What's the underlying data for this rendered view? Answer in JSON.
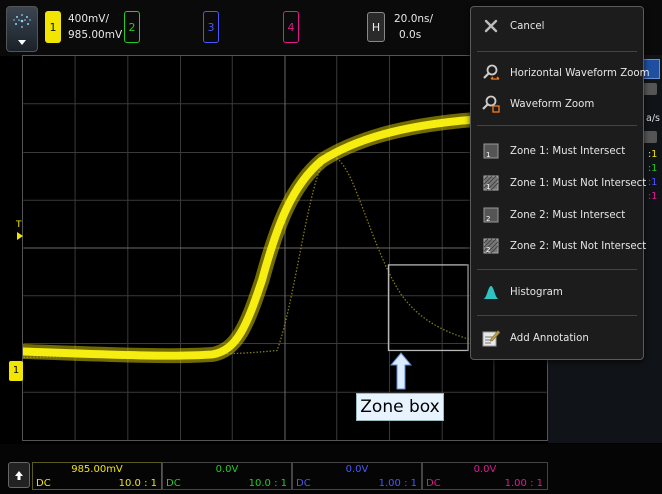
{
  "channels": {
    "ch1": {
      "num": "1",
      "scale": "400mV/",
      "offset": "985.00mV",
      "color": "#f2e600"
    },
    "ch2": {
      "num": "2",
      "color": "#22cc22"
    },
    "ch3": {
      "num": "3",
      "color": "#4a56ff"
    },
    "ch4": {
      "num": "4",
      "color": "#e0198f"
    }
  },
  "horizontal": {
    "label": "H",
    "scale": "20.0ns/",
    "delay": "0.0s"
  },
  "menu": {
    "items": [
      {
        "label": "Cancel",
        "icon": "cancel-icon"
      },
      {
        "label": "Horizontal Waveform Zoom",
        "icon": "horizontal-zoom-icon"
      },
      {
        "label": "Waveform Zoom",
        "icon": "waveform-zoom-icon"
      },
      {
        "label": "Zone 1: Must Intersect",
        "icon": "zone1-intersect-icon"
      },
      {
        "label": "Zone 1: Must Not Intersect",
        "icon": "zone1-not-intersect-icon"
      },
      {
        "label": "Zone 2: Must Intersect",
        "icon": "zone2-intersect-icon"
      },
      {
        "label": "Zone 2: Must Not Intersect",
        "icon": "zone2-not-intersect-icon"
      },
      {
        "label": "Histogram",
        "icon": "histogram-icon"
      },
      {
        "label": "Add Annotation",
        "icon": "annotation-icon"
      }
    ]
  },
  "right_panel": {
    "snip_rate": "a/s",
    "ratios": [
      ":1",
      ":1",
      ":1",
      ":1"
    ]
  },
  "bottom": [
    {
      "value": "985.00mV",
      "coupling": "DC",
      "ratio": "10.0 : 1",
      "color": "#f2e600"
    },
    {
      "value": "0.0V",
      "coupling": "DC",
      "ratio": "10.0 : 1",
      "color": "#22cc22"
    },
    {
      "value": "0.0V",
      "coupling": "DC",
      "ratio": "1.00 : 1",
      "color": "#4a56ff"
    },
    {
      "value": "0.0V",
      "coupling": "DC",
      "ratio": "1.00 : 1",
      "color": "#e0198f"
    }
  ],
  "markers": {
    "trigger_level": "T",
    "ch1_ground": "1"
  },
  "callout": {
    "text": "Zone box"
  }
}
